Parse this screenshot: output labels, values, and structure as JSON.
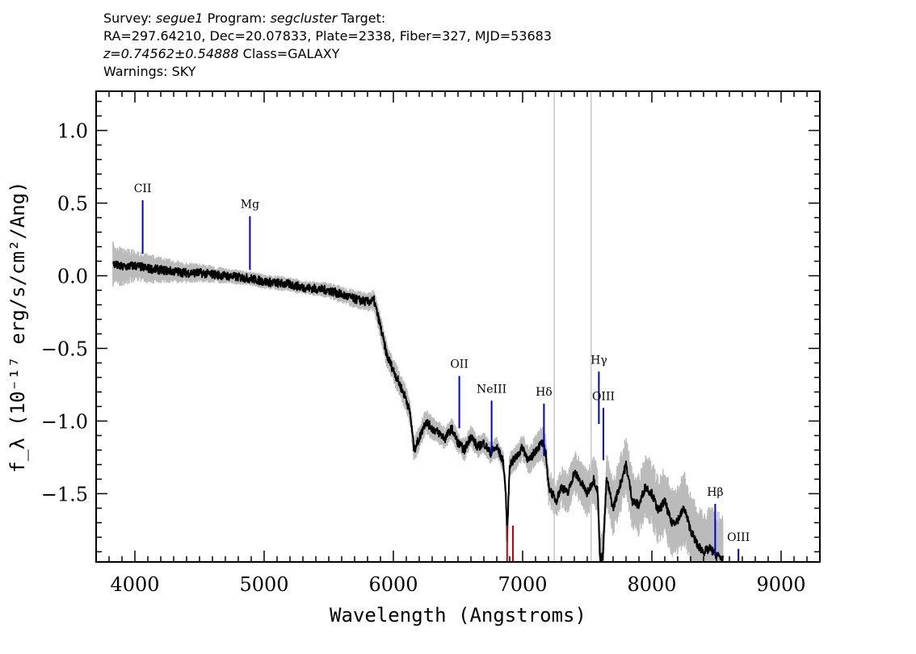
{
  "header": {
    "survey_label": "Survey:",
    "survey": "segue1",
    "program_label": "Program:",
    "program": "segcluster",
    "target_label": "Target:",
    "line2": "RA=297.64210, Dec=20.07833, Plate=2338, Fiber=327, MJD=53683",
    "redshift": "z=0.74562±0.54888",
    "class_text": "Class=GALAXY",
    "warnings": "Warnings: SKY"
  },
  "chart_data": {
    "type": "line",
    "xlabel": "Wavelength (Angstroms)",
    "ylabel": "f_λ (10⁻¹⁷ erg/s/cm²/Ang)",
    "xlim": [
      3700,
      9300
    ],
    "ylim": [
      -1.97,
      1.27
    ],
    "x_ticks": [
      4000,
      5000,
      6000,
      7000,
      8000,
      9000
    ],
    "x_tick_labels": [
      "4000",
      "5000",
      "6000",
      "7000",
      "8000",
      "9000"
    ],
    "y_ticks": [
      1.0,
      0.5,
      0.0,
      -0.5,
      -1.0,
      -1.5
    ],
    "y_tick_labels": [
      "1.0",
      "0.5",
      "0.0",
      "−0.5",
      "−1.0",
      "−1.5"
    ],
    "grid": false,
    "colors": {
      "flux": "#000000",
      "error": "#bbbbbb",
      "line_marker": "#0000cc",
      "sky_marker": "#cc0000",
      "spike": "#c8c8c8"
    },
    "series": [
      {
        "role": "flux",
        "x": [
          3830,
          3900,
          4000,
          4100,
          4200,
          4300,
          4400,
          4500,
          4600,
          4700,
          4800,
          4900,
          5000,
          5100,
          5200,
          5300,
          5400,
          5500,
          5600,
          5700,
          5800,
          5850,
          5900,
          5950,
          6000,
          6050,
          6100,
          6130,
          6160,
          6200,
          6250,
          6300,
          6350,
          6400,
          6450,
          6500,
          6550,
          6600,
          6650,
          6700,
          6750,
          6800,
          6850,
          6870,
          6880,
          6900,
          6950,
          7000,
          7050,
          7100,
          7150,
          7180,
          7200,
          7230,
          7260,
          7300,
          7350,
          7400,
          7450,
          7500,
          7550,
          7580,
          7600,
          7620,
          7650,
          7700,
          7750,
          7800,
          7850,
          7900,
          7950,
          8000,
          8050,
          8100,
          8150,
          8200,
          8250,
          8300,
          8350,
          8400,
          8450,
          8500,
          8550
        ],
        "y": [
          0.08,
          0.06,
          0.07,
          0.05,
          0.04,
          0.03,
          0.02,
          0.02,
          0.01,
          0.0,
          -0.01,
          -0.02,
          -0.04,
          -0.05,
          -0.06,
          -0.08,
          -0.09,
          -0.1,
          -0.13,
          -0.16,
          -0.18,
          -0.17,
          -0.35,
          -0.55,
          -0.65,
          -0.75,
          -0.85,
          -0.95,
          -1.2,
          -1.12,
          -1.0,
          -1.05,
          -1.08,
          -1.12,
          -1.05,
          -1.15,
          -1.2,
          -1.1,
          -1.18,
          -1.15,
          -1.22,
          -1.18,
          -1.28,
          -1.5,
          -1.8,
          -1.3,
          -1.25,
          -1.18,
          -1.28,
          -1.2,
          -1.15,
          -1.22,
          -1.45,
          -1.5,
          -1.55,
          -1.45,
          -1.5,
          -1.35,
          -1.42,
          -1.5,
          -1.4,
          -1.48,
          -1.95,
          -1.93,
          -1.4,
          -1.6,
          -1.45,
          -1.3,
          -1.55,
          -1.58,
          -1.45,
          -1.5,
          -1.62,
          -1.55,
          -1.7,
          -1.68,
          -1.6,
          -1.75,
          -1.85,
          -1.9,
          -1.88,
          -1.92,
          -1.95
        ]
      },
      {
        "role": "error-band",
        "x": [
          3830,
          4000,
          4200,
          4500,
          4800,
          5100,
          5400,
          5700,
          5800,
          5900,
          6000,
          6100,
          6200,
          6400,
          6600,
          6800,
          7000,
          7200,
          7400,
          7600,
          7800,
          8000,
          8200,
          8400,
          8550
        ],
        "half_width": [
          0.12,
          0.09,
          0.07,
          0.05,
          0.04,
          0.04,
          0.04,
          0.05,
          0.05,
          0.07,
          0.07,
          0.07,
          0.07,
          0.06,
          0.06,
          0.06,
          0.07,
          0.1,
          0.12,
          0.14,
          0.16,
          0.18,
          0.2,
          0.22,
          0.25
        ]
      }
    ],
    "sky_spikes": [
      7245,
      7530
    ],
    "lines": [
      {
        "label": "CII",
        "x": 4060,
        "y_top": 0.52,
        "y_bottom": 0.15,
        "color": "#0000cc"
      },
      {
        "label": "Mg",
        "x": 4890,
        "y_top": 0.41,
        "y_bottom": 0.04,
        "color": "#0000cc"
      },
      {
        "label": "OII",
        "x": 6510,
        "y_top": -0.69,
        "y_bottom": -1.05,
        "color": "#0000cc"
      },
      {
        "label": "NeIII",
        "x": 6760,
        "y_top": -0.86,
        "y_bottom": -1.22,
        "color": "#0000cc"
      },
      {
        "label": "Hδ",
        "x": 7165,
        "y_top": -0.88,
        "y_bottom": -1.24,
        "color": "#0000cc"
      },
      {
        "label": "Hγ",
        "x": 7590,
        "y_top": -0.66,
        "y_bottom": -1.02,
        "color": "#0000cc"
      },
      {
        "label": "OIII",
        "x": 7625,
        "y_top": -0.91,
        "y_bottom": -1.27,
        "color": "#0000cc"
      },
      {
        "label": "Hβ",
        "x": 8490,
        "y_top": -1.57,
        "y_bottom": -1.93,
        "color": "#0000cc"
      },
      {
        "label": "OIII",
        "x": 8670,
        "y_top": -1.88,
        "y_bottom": -1.97,
        "color": "#0000cc"
      }
    ],
    "sky_lines": [
      {
        "x": 6880,
        "y_top": -1.72,
        "color": "#cc0000"
      },
      {
        "x": 6925,
        "y_top": -1.72,
        "color": "#cc0000"
      }
    ]
  }
}
